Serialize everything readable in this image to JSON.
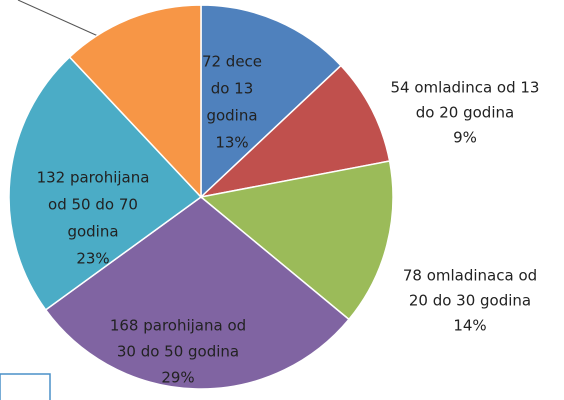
{
  "chart_data": {
    "type": "pie",
    "values": [
      13,
      9,
      14,
      29,
      23,
      12
    ],
    "value_labels": [
      [
        "72 dece",
        "do 13",
        "godina",
        "13%"
      ],
      [
        "54 omladinca od 13",
        "do 20 godina",
        "9%"
      ],
      [
        "78 omladinaca od",
        "20 do 30 godina",
        "14%"
      ],
      [
        "168 parohijana od",
        "30 do 50 godina",
        "29%"
      ],
      [
        "132 parohijana",
        "od 50 do 70",
        "godina",
        "23%"
      ],
      null
    ],
    "colors": [
      "#4f81bd",
      "#c0504d",
      "#9bbb59",
      "#8064a2",
      "#4bacc6",
      "#f79646"
    ],
    "start_angle": 0,
    "direction": "clockwise"
  }
}
